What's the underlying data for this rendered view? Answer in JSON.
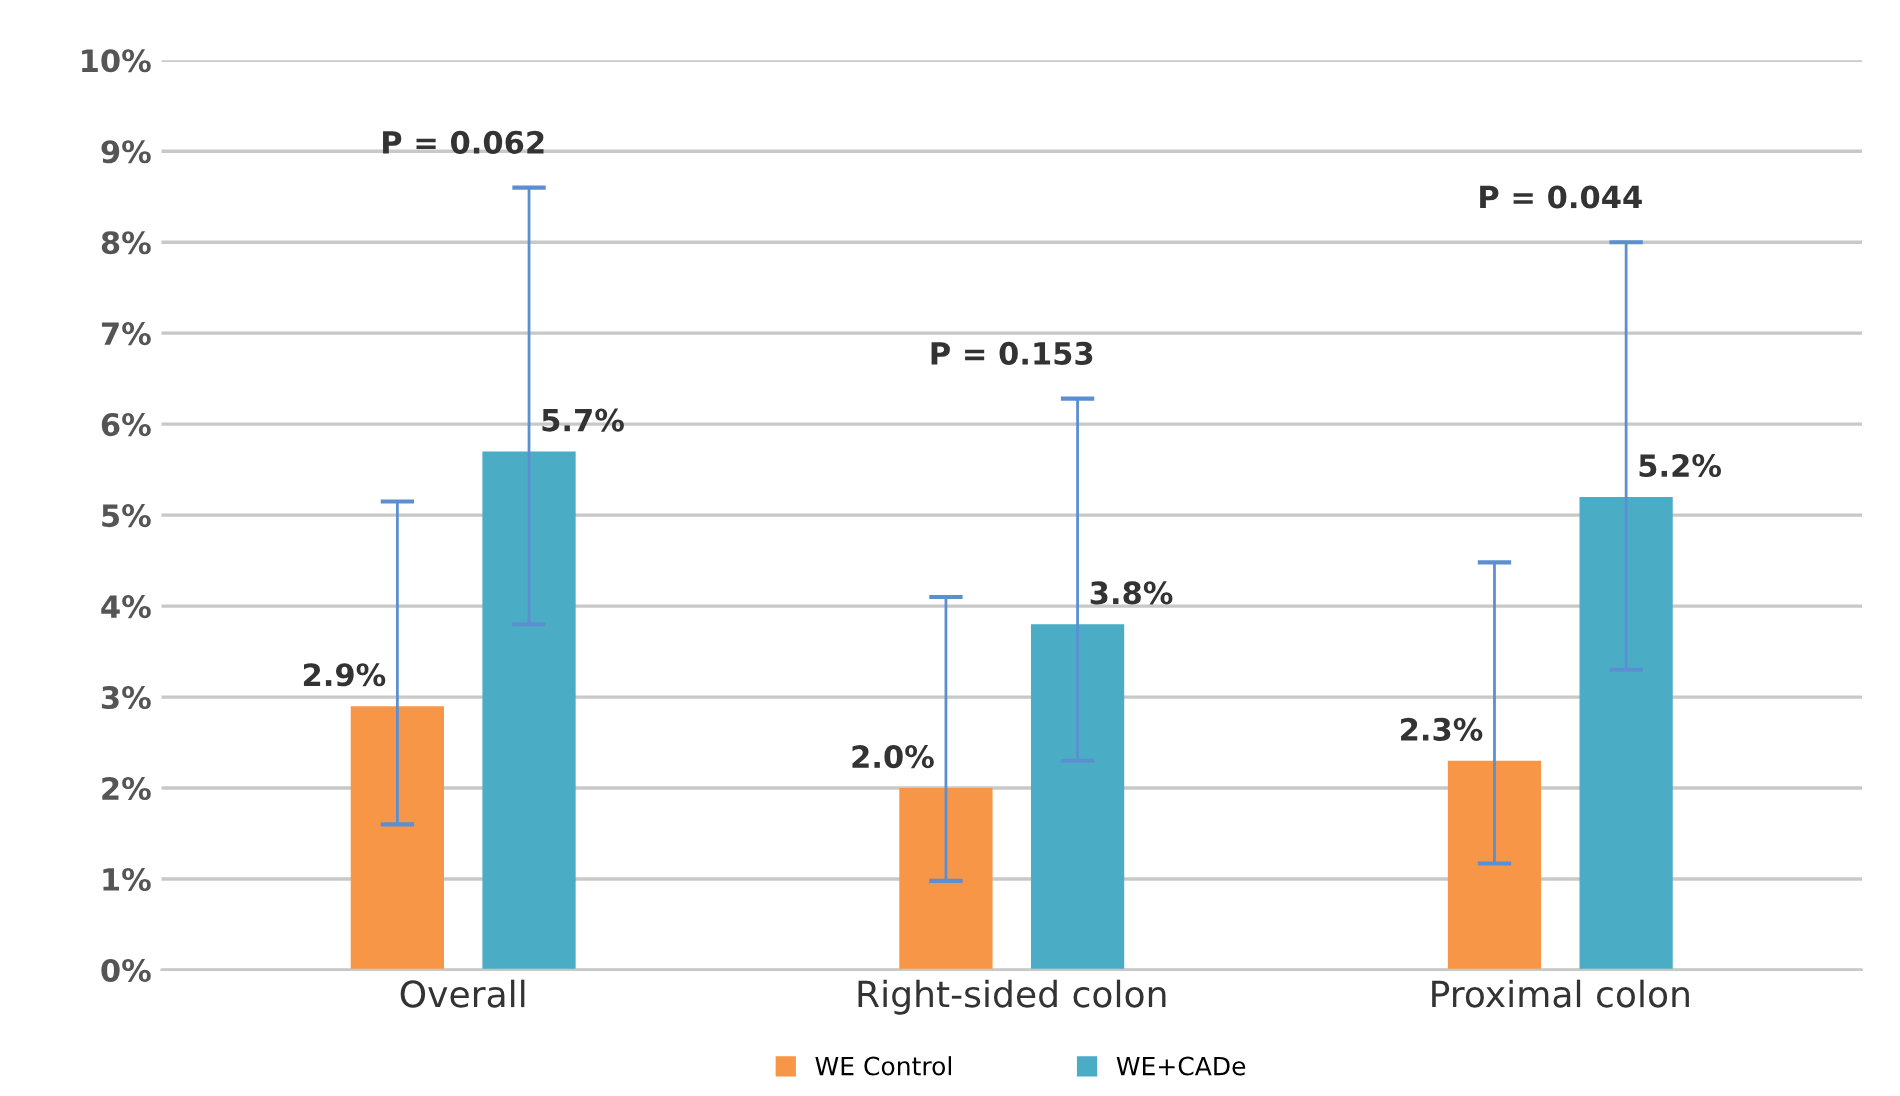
{
  "chart_data": {
    "type": "bar",
    "categories": [
      "Overall",
      "Right-sided colon",
      "Proximal colon"
    ],
    "series": [
      {
        "name": "WE Control",
        "color": "#f79646",
        "values": [
          2.9,
          2.0,
          2.3
        ],
        "errors": [
          [
            1.6,
            5.15
          ],
          [
            0.98,
            4.1
          ],
          [
            1.17,
            4.48
          ]
        ],
        "value_labels": [
          "2.9%",
          "2.0%",
          "2.3%"
        ]
      },
      {
        "name": "WE+CADe",
        "color": "#4bacc6",
        "values": [
          5.7,
          3.8,
          5.2
        ],
        "errors": [
          [
            3.8,
            8.6
          ],
          [
            2.3,
            6.28
          ],
          [
            3.3,
            8.0
          ]
        ],
        "value_labels": [
          "5.7%",
          "3.8%",
          "5.2%"
        ]
      }
    ],
    "ylim": [
      0,
      10
    ],
    "yticks": [
      {
        "value": 0,
        "label": "0%"
      },
      {
        "value": 1,
        "label": "1%"
      },
      {
        "value": 2,
        "label": "2%"
      },
      {
        "value": 3,
        "label": "3%"
      },
      {
        "value": 4,
        "label": "4%"
      },
      {
        "value": 5,
        "label": "5%"
      },
      {
        "value": 6,
        "label": "6%"
      },
      {
        "value": 7,
        "label": "7%"
      },
      {
        "value": 8,
        "label": "8%"
      },
      {
        "value": 9,
        "label": "9%"
      },
      {
        "value": 10,
        "label": "10%"
      }
    ],
    "annotations": [
      "P = 0.062",
      "P = 0.153",
      "P = 0.044"
    ],
    "grid": "y",
    "legend": "bottom"
  }
}
